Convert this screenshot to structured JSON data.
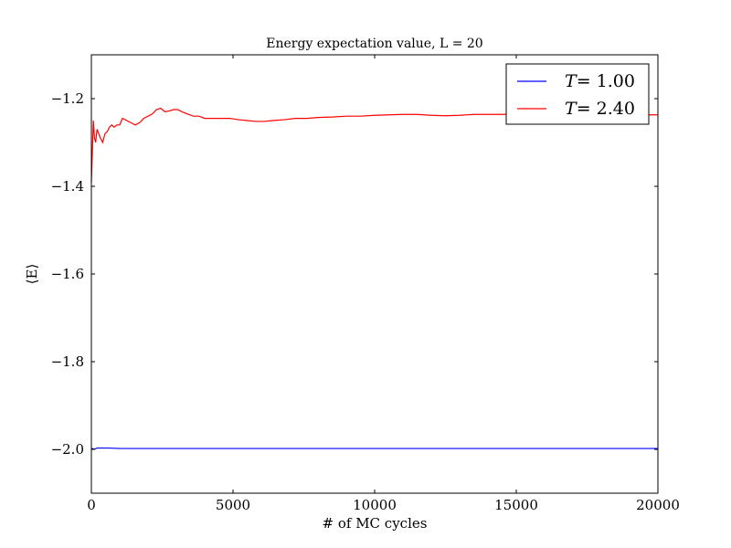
{
  "chart_data": {
    "type": "line",
    "title": "Energy expectation value, L = 20",
    "xlabel": "# of MC cycles",
    "ylabel": "⟨E⟩",
    "xlim": [
      0,
      20000
    ],
    "ylim": [
      -2.1,
      -1.1
    ],
    "xticks": [
      0,
      5000,
      10000,
      15000,
      20000
    ],
    "yticks": [
      -1.2,
      -1.4,
      -1.6,
      -1.8,
      -2.0
    ],
    "xtick_labels": [
      "0",
      "5000",
      "10000",
      "15000",
      "20000"
    ],
    "ytick_labels": [
      "−1.2",
      "−1.4",
      "−1.6",
      "−1.8",
      "−2.0"
    ],
    "grid": false,
    "legend_position": "top-right",
    "series": [
      {
        "name": "T= 1.00",
        "legend_italic": "T",
        "legend_rest": "= 1.00",
        "color": "#0000ff",
        "points": [
          [
            0,
            -2.0
          ],
          [
            40,
            -1.998
          ],
          [
            100,
            -2.0
          ],
          [
            200,
            -1.997
          ],
          [
            400,
            -1.997
          ],
          [
            600,
            -1.997
          ],
          [
            1000,
            -1.998
          ],
          [
            2000,
            -1.998
          ],
          [
            5000,
            -1.998
          ],
          [
            10000,
            -1.998
          ],
          [
            15000,
            -1.998
          ],
          [
            20000,
            -1.998
          ]
        ]
      },
      {
        "name": "T= 2.40",
        "legend_italic": "T",
        "legend_rest": "= 2.40",
        "color": "#ff0000",
        "points": [
          [
            0,
            -1.39
          ],
          [
            40,
            -1.31
          ],
          [
            70,
            -1.25
          ],
          [
            110,
            -1.29
          ],
          [
            150,
            -1.3
          ],
          [
            200,
            -1.27
          ],
          [
            260,
            -1.28
          ],
          [
            320,
            -1.29
          ],
          [
            400,
            -1.3
          ],
          [
            480,
            -1.28
          ],
          [
            560,
            -1.275
          ],
          [
            640,
            -1.265
          ],
          [
            720,
            -1.26
          ],
          [
            800,
            -1.265
          ],
          [
            900,
            -1.26
          ],
          [
            1000,
            -1.26
          ],
          [
            1100,
            -1.245
          ],
          [
            1250,
            -1.25
          ],
          [
            1400,
            -1.255
          ],
          [
            1550,
            -1.26
          ],
          [
            1700,
            -1.255
          ],
          [
            1850,
            -1.245
          ],
          [
            2000,
            -1.24
          ],
          [
            2150,
            -1.235
          ],
          [
            2300,
            -1.225
          ],
          [
            2450,
            -1.222
          ],
          [
            2600,
            -1.23
          ],
          [
            2750,
            -1.228
          ],
          [
            2900,
            -1.225
          ],
          [
            3050,
            -1.225
          ],
          [
            3200,
            -1.23
          ],
          [
            3400,
            -1.235
          ],
          [
            3600,
            -1.24
          ],
          [
            3800,
            -1.24
          ],
          [
            4000,
            -1.245
          ],
          [
            4300,
            -1.245
          ],
          [
            4600,
            -1.245
          ],
          [
            4900,
            -1.245
          ],
          [
            5200,
            -1.248
          ],
          [
            5500,
            -1.25
          ],
          [
            5800,
            -1.252
          ],
          [
            6100,
            -1.252
          ],
          [
            6400,
            -1.25
          ],
          [
            6800,
            -1.248
          ],
          [
            7200,
            -1.245
          ],
          [
            7600,
            -1.245
          ],
          [
            8000,
            -1.243
          ],
          [
            8500,
            -1.242
          ],
          [
            9000,
            -1.24
          ],
          [
            9500,
            -1.24
          ],
          [
            10000,
            -1.238
          ],
          [
            10500,
            -1.237
          ],
          [
            11000,
            -1.236
          ],
          [
            11500,
            -1.236
          ],
          [
            12000,
            -1.238
          ],
          [
            12500,
            -1.239
          ],
          [
            13000,
            -1.238
          ],
          [
            13500,
            -1.236
          ],
          [
            14000,
            -1.236
          ],
          [
            14500,
            -1.236
          ],
          [
            15000,
            -1.235
          ],
          [
            15500,
            -1.234
          ],
          [
            16000,
            -1.236
          ],
          [
            16500,
            -1.237
          ],
          [
            17000,
            -1.236
          ],
          [
            17500,
            -1.236
          ],
          [
            18000,
            -1.236
          ],
          [
            18500,
            -1.236
          ],
          [
            19000,
            -1.237
          ],
          [
            19500,
            -1.237
          ],
          [
            20000,
            -1.237
          ]
        ]
      }
    ]
  }
}
